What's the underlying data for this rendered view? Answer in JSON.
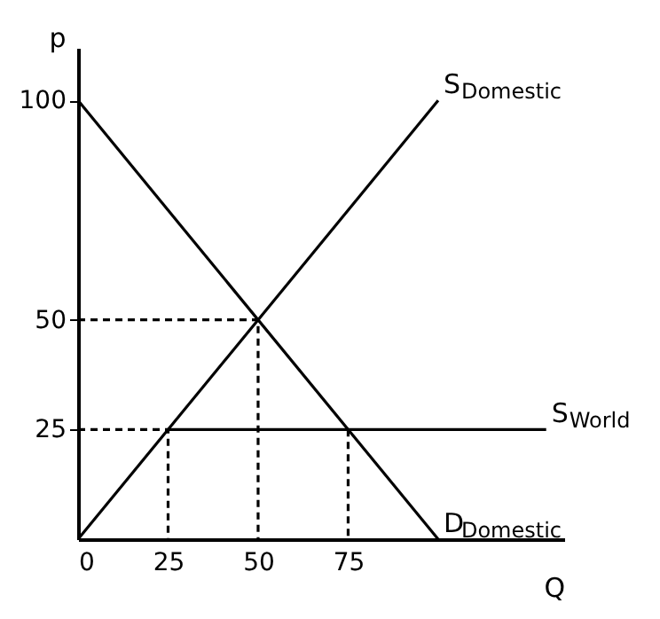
{
  "chart_data": {
    "type": "line",
    "xlabel": "Q",
    "ylabel": "p",
    "xlim": [
      0,
      135
    ],
    "ylim": [
      0,
      112
    ],
    "xticks": [
      0,
      25,
      50,
      75
    ],
    "yticks": [
      25,
      50,
      100
    ],
    "grid": false,
    "marker": "none",
    "series": [
      {
        "name": "S$_{Domestic}$",
        "color": "#000000",
        "x": [
          0,
          100
        ],
        "values": [
          0,
          100
        ]
      },
      {
        "name": "D$_{Domestic}$",
        "color": "#000000",
        "x": [
          0,
          100
        ],
        "values": [
          100,
          0
        ]
      },
      {
        "name": "S$_{World}$",
        "color": "#000000",
        "x": [
          25,
          130
        ],
        "values": [
          25,
          25
        ]
      },
      {
        "color": "#000000",
        "line_style": "dashed",
        "x": [
          0,
          50,
          50
        ],
        "values": [
          50,
          50,
          0
        ]
      },
      {
        "color": "#000000",
        "line_style": "dashed",
        "x": [
          0,
          25,
          25
        ],
        "values": [
          25,
          25,
          0
        ]
      },
      {
        "color": "#000000",
        "line_style": "dashed",
        "x": [
          75,
          75
        ],
        "values": [
          25,
          0
        ]
      }
    ]
  }
}
